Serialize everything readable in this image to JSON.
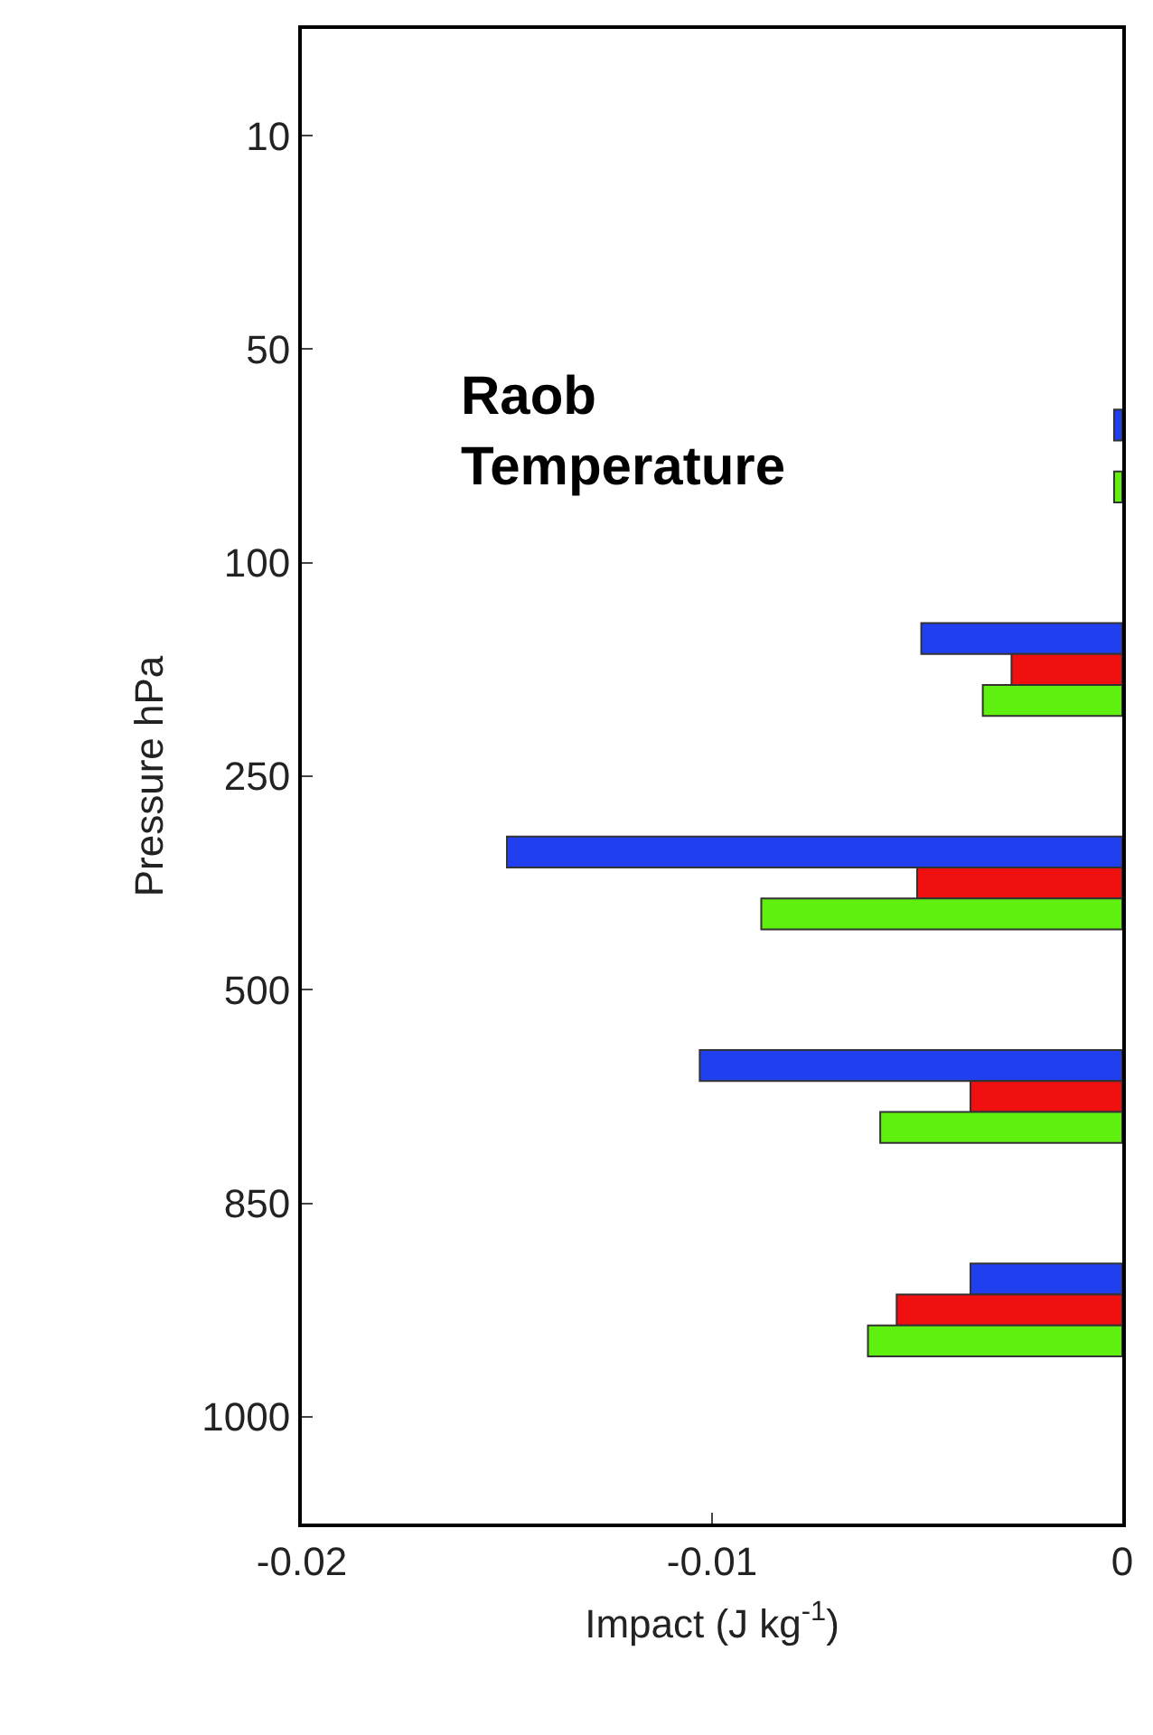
{
  "chart_data": {
    "type": "bar",
    "orientation": "horizontal",
    "xlabel": "Impact (J kg$^{-1}$)",
    "ylabel": "Pressure hPa",
    "annotations": [
      "Raob\nTemperature"
    ],
    "categories": [
      "10",
      null,
      "50",
      null,
      "100",
      null,
      "250",
      null,
      "500",
      null,
      "850",
      null,
      "1000"
    ],
    "series": [
      {
        "color": "#2040f0",
        "values": [
          null,
          null,
          null,
          -0.0002,
          null,
          -0.0049,
          null,
          -0.015,
          null,
          -0.0103,
          null,
          -0.0037,
          null
        ]
      },
      {
        "color": "#f01010",
        "values": [
          null,
          null,
          null,
          null,
          null,
          -0.0027,
          null,
          -0.005,
          null,
          -0.0037,
          null,
          -0.0055,
          null
        ]
      },
      {
        "color": "#60f010",
        "values": [
          null,
          null,
          null,
          -0.0002,
          null,
          -0.0034,
          null,
          -0.0088,
          null,
          -0.0059,
          null,
          -0.0062,
          null
        ]
      }
    ],
    "xlim": [
      -0.02,
      0
    ],
    "xticks": [
      -0.02,
      -0.01,
      0
    ]
  }
}
